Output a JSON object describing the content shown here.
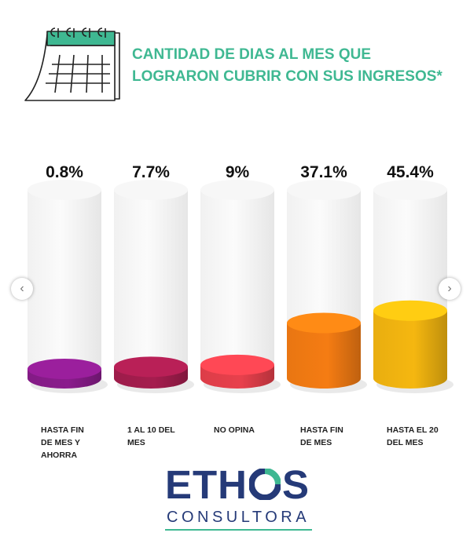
{
  "header": {
    "title_line1": "CANTIDAD DE DIAS AL MES QUE",
    "title_line2": "LOGRARON CUBRIR CON SUS INGRESOS*",
    "icon": "calendar-icon"
  },
  "navigation": {
    "prev_icon": "chevron-left-icon",
    "next_icon": "chevron-right-icon",
    "prev_glyph": "‹",
    "next_glyph": "›"
  },
  "chart_data": {
    "type": "bar",
    "title": "CANTIDAD DE DIAS AL MES QUE LOGRARON CUBRIR CON SUS INGRESOS*",
    "categories": [
      [
        "HASTA FIN",
        "DE MES Y",
        "AHORRA"
      ],
      [
        "1 AL 10 DEL",
        "MES"
      ],
      [
        "NO OPINA"
      ],
      [
        "HASTA FIN",
        "DE MES"
      ],
      [
        "HASTA EL 20",
        "DEL MES"
      ]
    ],
    "values": [
      0.8,
      7.7,
      9,
      37.1,
      45.4
    ],
    "labels": [
      "0.8%",
      "7.7%",
      "9%",
      "37.1%",
      "45.4%"
    ],
    "colors": [
      "#8a1c8c",
      "#a51d4e",
      "#e8404c",
      "#f57c13",
      "#f5b710"
    ],
    "ylim": [
      0,
      100
    ],
    "grid": false
  },
  "brand": {
    "name_part1": "ETH",
    "name_part2": "S",
    "subtitle": "CONSULTORA",
    "colors": {
      "navy": "#253a78",
      "green": "#3fb892"
    }
  }
}
